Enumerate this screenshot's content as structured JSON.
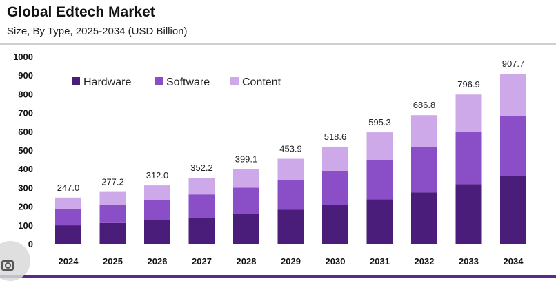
{
  "header": {
    "title": "Global Edtech Market",
    "subtitle": "Size, By Type, 2025-2034 (USD Billion)"
  },
  "colors": {
    "hardware": "#4b1d7a",
    "software": "#8a4fc7",
    "content": "#cda9ea",
    "axis": "#222222"
  },
  "chart_data": {
    "type": "bar",
    "stacked": true,
    "title": "Global Edtech Market",
    "subtitle": "Size, By Type, 2025-2034 (USD Billion)",
    "xlabel": "",
    "ylabel": "",
    "ylim": [
      0,
      1000
    ],
    "yticks": [
      "0",
      "100",
      "200",
      "300",
      "400",
      "500",
      "600",
      "700",
      "800",
      "900",
      "1000"
    ],
    "grid": false,
    "legend_position": "top-left",
    "categories": [
      "2024",
      "2025",
      "2026",
      "2027",
      "2028",
      "2029",
      "2030",
      "2031",
      "2032",
      "2033",
      "2034"
    ],
    "totals": [
      "247.0",
      "277.2",
      "312.0",
      "352.2",
      "399.1",
      "453.9",
      "518.6",
      "595.3",
      "686.8",
      "796.9",
      "907.7"
    ],
    "series": [
      {
        "name": "Hardware",
        "color_key": "hardware",
        "values": [
          99,
          111,
          125,
          141,
          160,
          182,
          207,
          238,
          275,
          319,
          363
        ]
      },
      {
        "name": "Software",
        "color_key": "software",
        "values": [
          86,
          97,
          109,
          123,
          140,
          159,
          182,
          208,
          240,
          279,
          318
        ]
      },
      {
        "name": "Content",
        "color_key": "content",
        "values": [
          62,
          69.2,
          78,
          88.2,
          99.1,
          112.9,
          129.6,
          149.3,
          171.8,
          198.9,
          226.7
        ]
      }
    ]
  }
}
